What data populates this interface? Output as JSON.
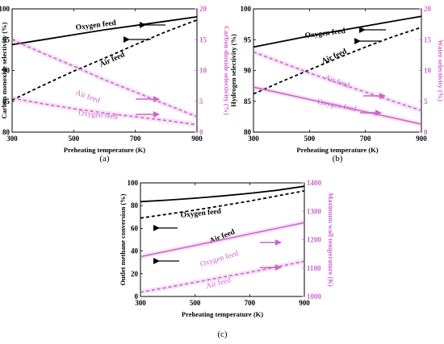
{
  "chart_data": [
    {
      "type": "line",
      "panel_label": "(a)",
      "xlabel": "Preheating temperature (K)",
      "ylabel": "Carbon monoxide selectivity (%)",
      "ylabel_right": "Carbon dioxide selectivity (%)",
      "xlim": [
        300,
        900
      ],
      "ylim": [
        80,
        100
      ],
      "ylim_right": [
        0,
        20
      ],
      "x_ticks": [
        "300",
        "500",
        "700",
        "900"
      ],
      "y_ticks": [
        "80",
        "85",
        "90",
        "95",
        "100"
      ],
      "y_ticks_right": [
        "0",
        "5",
        "10",
        "15",
        "20"
      ],
      "x": [
        300,
        400,
        500,
        600,
        700,
        800,
        900
      ],
      "series": [
        {
          "name": "Oxygen feed",
          "axis": "left",
          "style": "solid",
          "color": "#000000",
          "values": [
            94.2,
            95.0,
            95.8,
            96.6,
            97.3,
            98.0,
            98.7
          ]
        },
        {
          "name": "Air feed",
          "axis": "left",
          "style": "dashed",
          "color": "#000000",
          "values": [
            85.2,
            87.6,
            89.9,
            92.0,
            94.2,
            96.3,
            98.2
          ]
        },
        {
          "name": "Air feed",
          "axis": "right",
          "style": "dashed",
          "color": "#cc66cc",
          "values": [
            15.0,
            12.8,
            10.7,
            8.5,
            6.5,
            4.5,
            2.5
          ]
        },
        {
          "name": "Oxygen feed",
          "axis": "right",
          "style": "dashed",
          "color": "#cc66cc",
          "values": [
            5.5,
            4.6,
            3.8,
            3.1,
            2.5,
            1.9,
            1.2
          ]
        }
      ]
    },
    {
      "type": "line",
      "panel_label": "(b)",
      "xlabel": "Preheating temperature (K)",
      "ylabel": "Hydrogen selectivity (%)",
      "ylabel_right": "Water selectivity (%)",
      "xlim": [
        300,
        900
      ],
      "ylim": [
        80,
        100
      ],
      "ylim_right": [
        0,
        20
      ],
      "x_ticks": [
        "300",
        "500",
        "700",
        "900"
      ],
      "y_ticks": [
        "80",
        "85",
        "90",
        "95",
        "100"
      ],
      "y_ticks_right": [
        "0",
        "5",
        "10",
        "15",
        "20"
      ],
      "x": [
        300,
        400,
        500,
        600,
        700,
        800,
        900
      ],
      "series": [
        {
          "name": "Oxygen feed",
          "axis": "left",
          "style": "solid",
          "color": "#000000",
          "values": [
            93.8,
            94.7,
            95.6,
            96.4,
            97.2,
            98.0,
            98.8
          ]
        },
        {
          "name": "Air feed",
          "axis": "left",
          "style": "dashed",
          "color": "#000000",
          "values": [
            86.2,
            88.2,
            90.1,
            92.0,
            93.8,
            95.5,
            97.0
          ]
        },
        {
          "name": "Air feed",
          "axis": "right",
          "style": "dashed",
          "color": "#cc66cc",
          "values": [
            13.0,
            11.3,
            9.6,
            8.0,
            6.5,
            5.0,
            3.5
          ]
        },
        {
          "name": "Oxygen feed",
          "axis": "right",
          "style": "solid",
          "color": "#cc66cc",
          "values": [
            7.3,
            6.3,
            5.3,
            4.3,
            3.3,
            2.3,
            1.3
          ]
        }
      ]
    },
    {
      "type": "line",
      "panel_label": "(c)",
      "xlabel": "Preheating temperature (K)",
      "ylabel": "Outlet methane conversion (%)",
      "ylabel_right": "Maximum wall temperature (K)",
      "xlim": [
        300,
        900
      ],
      "ylim": [
        0,
        100
      ],
      "ylim_right": [
        1000,
        1400
      ],
      "x_ticks": [
        "300",
        "500",
        "700",
        "900"
      ],
      "y_ticks": [
        "0",
        "20",
        "40",
        "60",
        "80",
        "100"
      ],
      "y_ticks_right": [
        "1000",
        "1100",
        "1200",
        "1300",
        "1400"
      ],
      "x": [
        300,
        400,
        500,
        600,
        700,
        800,
        900
      ],
      "series": [
        {
          "name": "Oxygen feed",
          "axis": "left",
          "style": "solid",
          "color": "#000000",
          "values": [
            83.5,
            84.8,
            86.5,
            88.5,
            90.8,
            93.5,
            97.0
          ]
        },
        {
          "name": "Air feed",
          "axis": "left",
          "style": "dashed",
          "color": "#000000",
          "values": [
            69.0,
            72.5,
            76.0,
            80.0,
            84.0,
            88.5,
            93.0
          ]
        },
        {
          "name": "Oxygen feed",
          "axis": "right",
          "style": "solid",
          "color": "#cc66cc",
          "values": [
            1140,
            1160,
            1180,
            1200,
            1220,
            1240,
            1260
          ]
        },
        {
          "name": "Air feed",
          "axis": "right",
          "style": "dashed",
          "color": "#cc66cc",
          "values": [
            1015,
            1032,
            1050,
            1068,
            1085,
            1104,
            1124
          ]
        }
      ]
    }
  ]
}
